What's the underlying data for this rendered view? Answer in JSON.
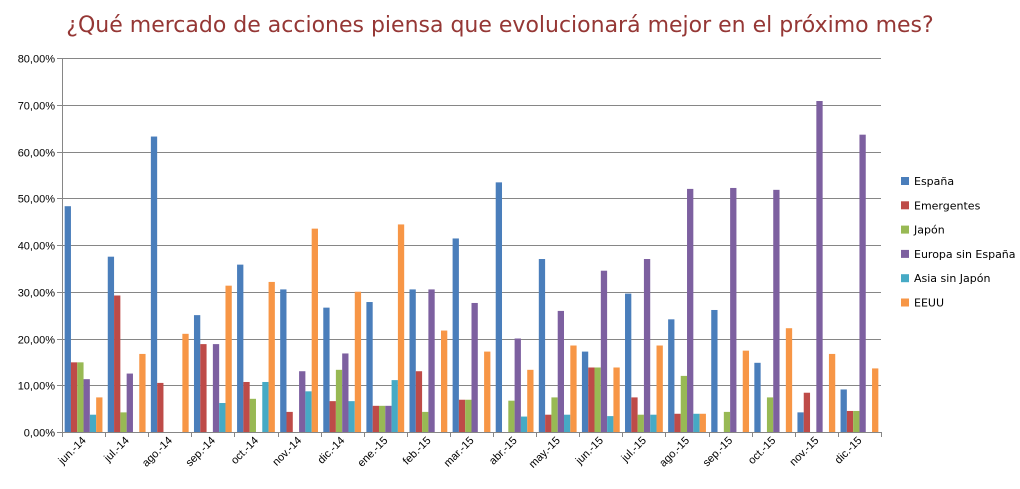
{
  "chart_data": {
    "type": "bar",
    "title": "¿Qué mercado de acciones piensa que evolucionará mejor en el próximo mes?",
    "xlabel": "",
    "ylabel": "",
    "ylim": [
      0,
      80
    ],
    "y_ticks": [
      "0,00%",
      "10,00%",
      "20,00%",
      "30,00%",
      "40,00%",
      "50,00%",
      "60,00%",
      "70,00%",
      "80,00%"
    ],
    "grid": true,
    "legend_position": "right",
    "categories": [
      "jun.-14",
      "jul.-14",
      "ago.-14",
      "sep.-14",
      "oct.-14",
      "nov.-14",
      "dic.-14",
      "ene.-15",
      "feb.-15",
      "mar.-15",
      "abr.-15",
      "may.-15",
      "jun.-15",
      "jul.-15",
      "ago.-15",
      "sep.-15",
      "oct.-15",
      "nov.-15",
      "dic.-15"
    ],
    "series": [
      {
        "name": "España",
        "color": "#4a7ebb",
        "values": [
          48.3,
          37.5,
          63.2,
          25.0,
          35.8,
          30.5,
          26.6,
          27.8,
          30.5,
          41.4,
          53.4,
          37.0,
          17.2,
          29.6,
          24.1,
          26.1,
          14.8,
          4.2,
          9.1
        ]
      },
      {
        "name": "Emergentes",
        "color": "#be4b48",
        "values": [
          14.9,
          29.2,
          10.5,
          18.8,
          10.7,
          4.3,
          6.6,
          5.6,
          13.0,
          6.9,
          0,
          3.7,
          13.8,
          7.4,
          3.9,
          0,
          0,
          8.4,
          4.5
        ]
      },
      {
        "name": "Japón",
        "color": "#98b954",
        "values": [
          14.9,
          4.2,
          0,
          0,
          7.1,
          0,
          13.3,
          5.6,
          4.3,
          6.9,
          6.7,
          7.4,
          13.8,
          3.7,
          12.0,
          4.3,
          7.4,
          0,
          4.5
        ]
      },
      {
        "name": "Europa sin España",
        "color": "#7d60a0",
        "values": [
          11.3,
          12.5,
          0,
          18.8,
          0,
          13.0,
          16.8,
          5.6,
          30.5,
          27.6,
          20.0,
          25.9,
          34.5,
          37.0,
          52.0,
          52.2,
          51.8,
          70.8,
          63.6
        ]
      },
      {
        "name": "Asia sin Japón",
        "color": "#46aac5",
        "values": [
          3.7,
          0,
          0,
          6.2,
          10.7,
          8.7,
          6.6,
          11.1,
          0,
          0,
          3.3,
          3.7,
          3.4,
          3.7,
          3.9,
          0,
          0,
          0,
          0
        ]
      },
      {
        "name": "EEUU",
        "color": "#f79646",
        "values": [
          7.4,
          16.7,
          21.0,
          31.3,
          32.1,
          43.5,
          30.0,
          44.4,
          21.7,
          17.2,
          13.3,
          18.5,
          13.8,
          18.5,
          3.9,
          17.4,
          22.2,
          16.7,
          13.6
        ]
      }
    ]
  }
}
